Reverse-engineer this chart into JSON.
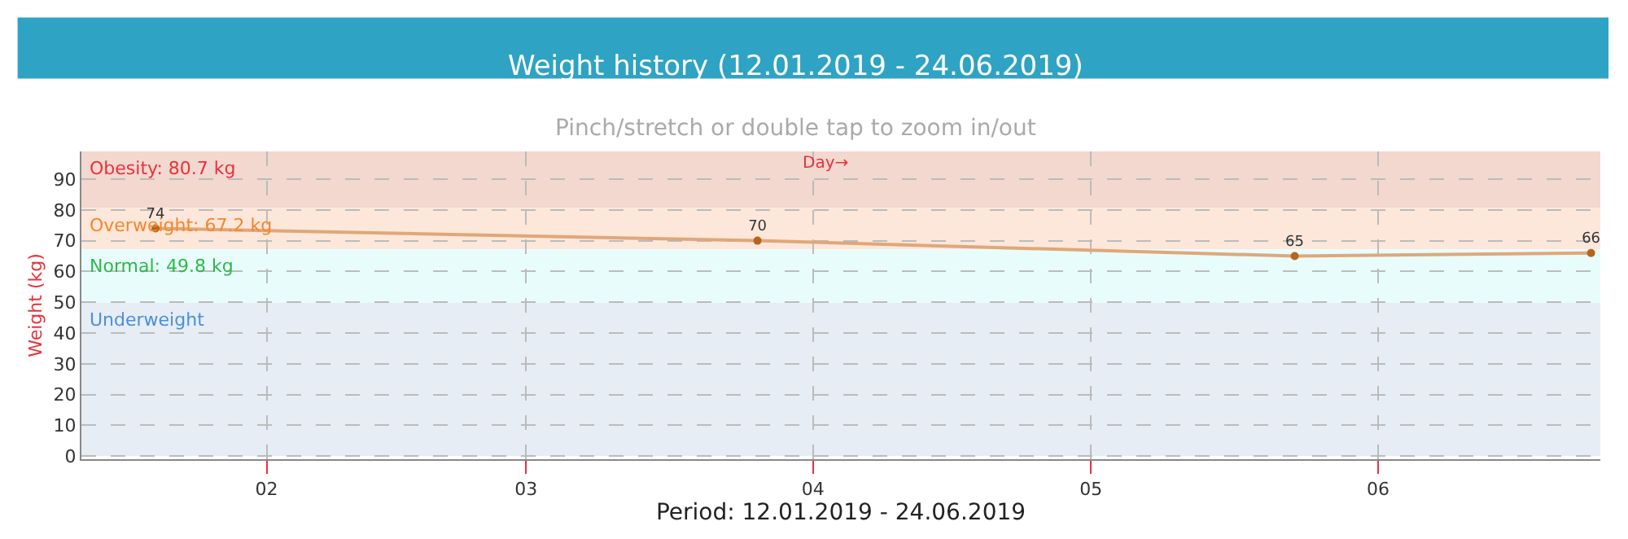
{
  "chart_data": {
    "type": "line",
    "title": "Weight history (12.01.2019 - 24.06.2019)",
    "subtitle": "Pinch/stretch or double tap to zoom in/out",
    "xlabel": "Period: 12.01.2019 - 24.06.2019",
    "ylabel": "Weight (kg)",
    "x": [
      "2019-01-20",
      "2019-03-26",
      "2019-05-23",
      "2019-06-24"
    ],
    "series": [
      {
        "color": "#e0a779",
        "values": [
          74,
          70,
          65,
          66
        ]
      }
    ],
    "data_labels": true,
    "marker": "circle",
    "line_style": "solid",
    "grid": true,
    "xlim": [
      "2019-01-12",
      "2019-06-25"
    ],
    "xticks": [
      {
        "value": "2019-02-01",
        "label": "02"
      },
      {
        "value": "2019-03-01",
        "label": "03"
      },
      {
        "value": "2019-04-01",
        "label": "04"
      },
      {
        "value": "2019-05-01",
        "label": "05"
      },
      {
        "value": "2019-06-01",
        "label": "06"
      }
    ],
    "ylim": [
      -1,
      99
    ],
    "yticks": [
      0,
      10,
      20,
      30,
      40,
      50,
      60,
      70,
      80,
      90
    ],
    "bands": [
      {
        "axis": "y",
        "from": 80.7,
        "to": 99,
        "label": "Obesity: 80.7 kg",
        "color": "#f2d8cf"
      },
      {
        "axis": "y",
        "from": 67.2,
        "to": 80.7,
        "label": "Overweight: 67.2 kg",
        "color": "#fde7da"
      },
      {
        "axis": "y",
        "from": 49.8,
        "to": 67.2,
        "label": "Normal: 49.8 kg",
        "color": "#e8fdfb"
      },
      {
        "axis": "y",
        "from": 0,
        "to": 49.8,
        "label": "Underweight",
        "color": "#e6edf5"
      }
    ],
    "annotations": [
      "Day→"
    ]
  }
}
